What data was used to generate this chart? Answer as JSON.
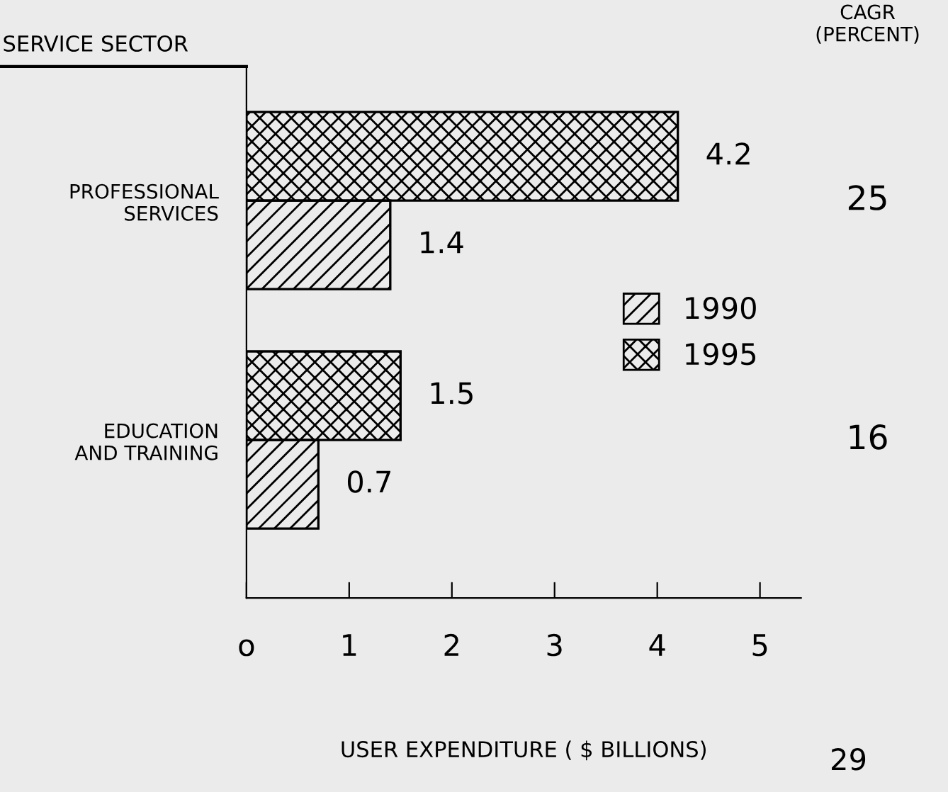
{
  "chart_data": {
    "type": "bar",
    "orientation": "horizontal",
    "ylabel": "SERVICE SECTOR",
    "xlabel": "USER EXPENDITURE ( $ BILLIONS)",
    "categories": [
      "PROFESSIONAL\nSERVICES",
      "EDUCATION\nAND TRAINING"
    ],
    "series": [
      {
        "name": "1990",
        "color": "#000000",
        "values": [
          1.4,
          0.7
        ]
      },
      {
        "name": "1995",
        "color": "#000000",
        "values": [
          4.2,
          1.5
        ]
      }
    ],
    "xlim": [
      0,
      5.4
    ],
    "xticks": [
      {
        "value": 0,
        "label": "o"
      },
      1,
      2,
      3,
      4,
      5
    ],
    "data_labels": true,
    "legend": "right",
    "grid": false,
    "annotations": [
      "CAGR\n(PERCENT)",
      "25",
      "16",
      "29"
    ]
  }
}
